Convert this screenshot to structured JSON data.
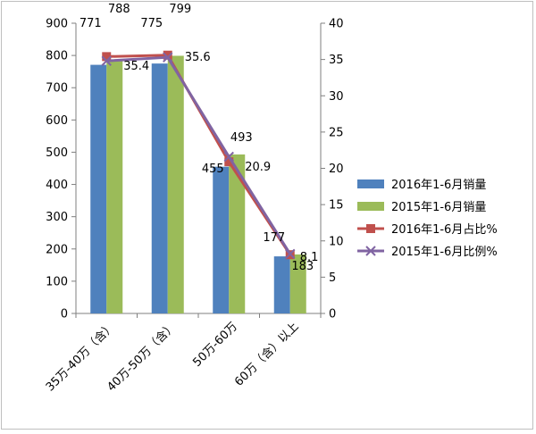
{
  "chart_data": {
    "type": "bar",
    "categories": [
      "35万-40万（含）",
      "40万-50万（含）",
      "50万-60万",
      "60万（含）以上"
    ],
    "series": [
      {
        "name": "2016年1-6月销量",
        "kind": "bar",
        "axis": "left",
        "color": "#4f81bd",
        "values": [
          771,
          775,
          455,
          177
        ]
      },
      {
        "name": "2015年1-6月销量",
        "kind": "bar",
        "axis": "left",
        "color": "#9bbb59",
        "values": [
          788,
          799,
          493,
          183
        ]
      },
      {
        "name": "2016年1-6月占比%",
        "kind": "line",
        "axis": "right",
        "color": "#c0504d",
        "marker": "square",
        "values": [
          35.4,
          35.6,
          20.9,
          8.1
        ]
      },
      {
        "name": "2015年1-6月比例%",
        "kind": "line",
        "axis": "right",
        "color": "#8064a2",
        "marker": "x",
        "values": [
          34.8,
          35.3,
          21.6,
          8.2
        ]
      }
    ],
    "bar_labels": [
      [
        "771",
        "775",
        "455",
        "177"
      ],
      [
        "788",
        "799",
        "493",
        "183"
      ]
    ],
    "line_labels": [
      "35.4",
      "35.6",
      "20.9",
      "8.1"
    ],
    "y_left": {
      "min": 0,
      "max": 900,
      "ticks": [
        0,
        100,
        200,
        300,
        400,
        500,
        600,
        700,
        800,
        900
      ]
    },
    "y_right": {
      "min": 0,
      "max": 40,
      "ticks": [
        0,
        5,
        10,
        15,
        20,
        25,
        30,
        35,
        40
      ]
    },
    "grid": false,
    "legend_position": "right"
  }
}
